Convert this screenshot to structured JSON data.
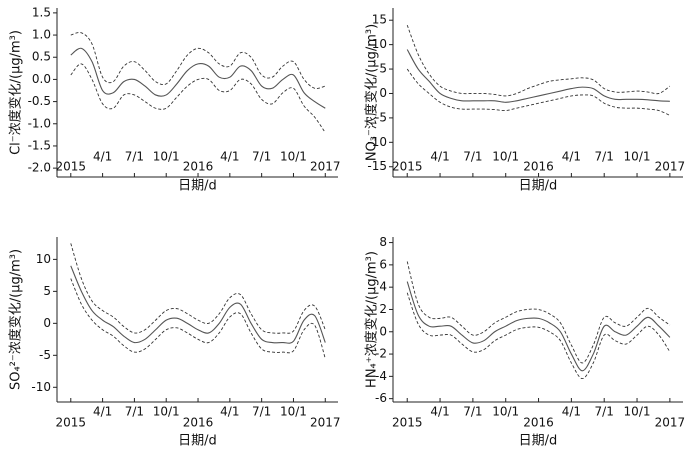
{
  "chart_data": [
    {
      "type": "line",
      "ylabel": "Cl⁻浓度变化/(μg/m³)",
      "xlabel": "日期/d",
      "x": [
        0,
        1,
        2,
        3,
        4,
        5,
        6,
        7,
        8,
        9,
        10,
        11,
        12,
        13,
        14,
        15,
        16,
        17,
        18,
        19,
        20,
        21,
        22,
        23,
        24
      ],
      "xlim": [
        -1.3,
        25.2
      ],
      "xticks": [
        {
          "value": 0,
          "label": "2015"
        },
        {
          "value": 3,
          "label": "4/1"
        },
        {
          "value": 6,
          "label": "7/1"
        },
        {
          "value": 9,
          "label": "10/1"
        },
        {
          "value": 12,
          "label": "2016"
        },
        {
          "value": 15,
          "label": "4/1"
        },
        {
          "value": 18,
          "label": "7/1"
        },
        {
          "value": 21,
          "label": "10/1"
        },
        {
          "value": 24,
          "label": "2017"
        }
      ],
      "ylim": [
        -2.2,
        1.61
      ],
      "yticks": [
        {
          "value": -2,
          "label": "-2.0"
        },
        -1.5,
        {
          "value": -1,
          "label": "-1.0"
        },
        -0.5,
        {
          "value": 0,
          "label": "0.0"
        },
        0.5,
        {
          "value": 1,
          "label": "1.0"
        },
        1.5
      ],
      "series": [
        {
          "color": "#555555",
          "dashed": false,
          "values": [
            0.55,
            0.7,
            0.4,
            -0.25,
            -0.3,
            -0.05,
            0.0,
            -0.15,
            -0.35,
            -0.35,
            -0.1,
            0.2,
            0.35,
            0.3,
            0.05,
            0.05,
            0.3,
            0.2,
            -0.15,
            -0.2,
            0.0,
            0.1,
            -0.3,
            -0.5,
            -0.65
          ]
        },
        {
          "color": "#333333",
          "dashed": true,
          "values": [
            1.0,
            1.05,
            0.8,
            0.05,
            -0.05,
            0.3,
            0.4,
            0.2,
            -0.05,
            -0.1,
            0.2,
            0.55,
            0.7,
            0.6,
            0.35,
            0.3,
            0.6,
            0.5,
            0.1,
            0.05,
            0.3,
            0.4,
            0.0,
            -0.2,
            -0.15
          ]
        },
        {
          "color": "#333333",
          "dashed": true,
          "values": [
            0.1,
            0.35,
            0.0,
            -0.55,
            -0.65,
            -0.35,
            -0.35,
            -0.5,
            -0.65,
            -0.65,
            -0.4,
            -0.15,
            0.0,
            0.0,
            -0.25,
            -0.25,
            0.0,
            -0.1,
            -0.45,
            -0.55,
            -0.3,
            -0.2,
            -0.6,
            -0.85,
            -1.2
          ]
        }
      ]
    },
    {
      "type": "line",
      "ylabel": "NO₃⁻浓度变化/(μg/m³)",
      "xlabel": "日期/d",
      "x": [
        0,
        1,
        2,
        3,
        4,
        5,
        6,
        7,
        8,
        9,
        10,
        11,
        12,
        13,
        14,
        15,
        16,
        17,
        18,
        19,
        20,
        21,
        22,
        23,
        24
      ],
      "xlim": [
        -1.3,
        25.2
      ],
      "xticks": [
        {
          "value": 0,
          "label": "2015"
        },
        {
          "value": 3,
          "label": "4/1"
        },
        {
          "value": 6,
          "label": "7/1"
        },
        {
          "value": 9,
          "label": "10/1"
        },
        {
          "value": 12,
          "label": "2016"
        },
        {
          "value": 15,
          "label": "4/1"
        },
        {
          "value": 18,
          "label": "7/1"
        },
        {
          "value": 21,
          "label": "10/1"
        },
        {
          "value": 24,
          "label": "2017"
        }
      ],
      "ylim": [
        -17.1,
        17.5
      ],
      "yticks": [
        -15,
        -10,
        -5,
        0,
        5,
        10,
        15
      ],
      "series": [
        {
          "color": "#555555",
          "dashed": false,
          "values": [
            9,
            5,
            2.5,
            0,
            -1,
            -1.5,
            -1.5,
            -1.5,
            -1.5,
            -1.8,
            -1.5,
            -1,
            -0.5,
            0,
            0.5,
            1,
            1.3,
            1,
            -0.5,
            -1.2,
            -1.2,
            -1.2,
            -1.3,
            -1.5,
            -1.6
          ]
        },
        {
          "color": "#333333",
          "dashed": true,
          "values": [
            14,
            8,
            4,
            1.5,
            0.5,
            0,
            0,
            0,
            -0.2,
            -0.5,
            0,
            1,
            1.8,
            2.5,
            2.8,
            3,
            3.2,
            2.8,
            1,
            0.3,
            0.3,
            0.5,
            0.3,
            0,
            1.5
          ]
        },
        {
          "color": "#333333",
          "dashed": true,
          "values": [
            5,
            2,
            0,
            -1.8,
            -2.8,
            -3.2,
            -3.2,
            -3.2,
            -3.3,
            -3.5,
            -3,
            -2.5,
            -2,
            -1.5,
            -1,
            -0.5,
            -0.3,
            -0.5,
            -2,
            -2.8,
            -3,
            -3,
            -3.2,
            -3.5,
            -4.5
          ]
        }
      ]
    },
    {
      "type": "line",
      "ylabel": "SO₄²⁻浓度变化/(μg/m³)",
      "xlabel": "日期/d",
      "x": [
        0,
        1,
        2,
        3,
        4,
        5,
        6,
        7,
        8,
        9,
        10,
        11,
        12,
        13,
        14,
        15,
        16,
        17,
        18,
        19,
        20,
        21,
        22,
        23,
        24
      ],
      "xlim": [
        -1.3,
        25.2
      ],
      "xticks": [
        {
          "value": 0,
          "label": "2015"
        },
        {
          "value": 3,
          "label": "4/1"
        },
        {
          "value": 6,
          "label": "7/1"
        },
        {
          "value": 9,
          "label": "10/1"
        },
        {
          "value": 12,
          "label": "2016"
        },
        {
          "value": 15,
          "label": "4/1"
        },
        {
          "value": 18,
          "label": "7/1"
        },
        {
          "value": 21,
          "label": "10/1"
        },
        {
          "value": 24,
          "label": "2017"
        }
      ],
      "ylim": [
        -12.3,
        13.5
      ],
      "yticks": [
        -10,
        -5,
        0,
        5,
        10
      ],
      "series": [
        {
          "color": "#555555",
          "dashed": false,
          "values": [
            9,
            5,
            2,
            0.5,
            -0.5,
            -2,
            -3,
            -2.5,
            -1,
            0.5,
            0.8,
            0,
            -1,
            -1.5,
            0,
            2.5,
            3,
            0,
            -2.5,
            -3,
            -3,
            -2.8,
            0.5,
            1.2,
            -3
          ]
        },
        {
          "color": "#333333",
          "dashed": true,
          "values": [
            12.5,
            7,
            3.5,
            2,
            1,
            -0.5,
            -1.5,
            -1,
            0.5,
            2,
            2.3,
            1.5,
            0.5,
            0,
            1.5,
            4,
            4.5,
            1.5,
            -1,
            -1.5,
            -1.5,
            -1.2,
            2,
            2.7,
            -1
          ]
        },
        {
          "color": "#333333",
          "dashed": true,
          "values": [
            7,
            3,
            0.5,
            -1,
            -2,
            -3.5,
            -4.5,
            -4,
            -2.5,
            -1,
            -0.7,
            -1.5,
            -2.5,
            -3,
            -1.5,
            1,
            1.5,
            -1.5,
            -4,
            -4.5,
            -4.5,
            -4.3,
            -1,
            -0.3,
            -5.5
          ]
        }
      ]
    },
    {
      "type": "line",
      "ylabel": "HN₄⁺浓度变化/(μg/m³)",
      "xlabel": "日期/d",
      "x": [
        0,
        1,
        2,
        3,
        4,
        5,
        6,
        7,
        8,
        9,
        10,
        11,
        12,
        13,
        14,
        15,
        16,
        17,
        18,
        19,
        20,
        21,
        22,
        23,
        24
      ],
      "xlim": [
        -1.3,
        25.2
      ],
      "xticks": [
        {
          "value": 0,
          "label": "2015"
        },
        {
          "value": 3,
          "label": "4/1"
        },
        {
          "value": 6,
          "label": "7/1"
        },
        {
          "value": 9,
          "label": "10/1"
        },
        {
          "value": 12,
          "label": "2016"
        },
        {
          "value": 15,
          "label": "4/1"
        },
        {
          "value": 18,
          "label": "7/1"
        },
        {
          "value": 21,
          "label": "10/1"
        },
        {
          "value": 24,
          "label": "2017"
        }
      ],
      "ylim": [
        -6.3,
        8.5
      ],
      "yticks": [
        -6,
        -4,
        -2,
        0,
        2,
        4,
        6,
        8
      ],
      "series": [
        {
          "color": "#555555",
          "dashed": false,
          "values": [
            4.5,
            1.5,
            0.5,
            0.5,
            0.5,
            -0.3,
            -1,
            -0.8,
            0,
            0.5,
            1,
            1.2,
            1.2,
            0.8,
            0,
            -2,
            -3.5,
            -2,
            0.5,
            0,
            -0.3,
            0.5,
            1.3,
            0.5,
            -0.5
          ]
        },
        {
          "color": "#333333",
          "dashed": true,
          "values": [
            6.3,
            2.5,
            1.3,
            1.2,
            1.3,
            0.5,
            -0.3,
            0,
            0.8,
            1.3,
            1.8,
            2,
            2,
            1.6,
            0.8,
            -1.2,
            -2.8,
            -1.2,
            1.3,
            0.8,
            0.5,
            1.3,
            2.1,
            1.3,
            0.6
          ]
        },
        {
          "color": "#333333",
          "dashed": true,
          "values": [
            3.5,
            0.7,
            -0.3,
            -0.3,
            -0.3,
            -1.1,
            -1.8,
            -1.6,
            -0.8,
            -0.3,
            0.2,
            0.4,
            0.4,
            0,
            -0.8,
            -2.8,
            -4.2,
            -2.8,
            -0.3,
            -0.8,
            -1.1,
            -0.3,
            0.5,
            -0.3,
            -1.8
          ]
        }
      ]
    }
  ]
}
